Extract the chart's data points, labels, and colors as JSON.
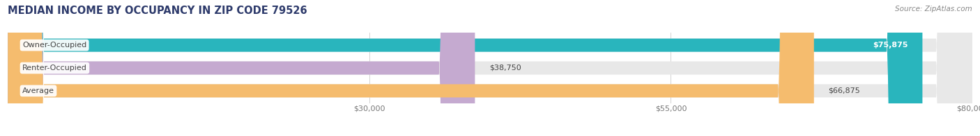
{
  "title": "MEDIAN INCOME BY OCCUPANCY IN ZIP CODE 79526",
  "source": "Source: ZipAtlas.com",
  "categories": [
    "Owner-Occupied",
    "Renter-Occupied",
    "Average"
  ],
  "values": [
    75875,
    38750,
    66875
  ],
  "bar_colors": [
    "#29b5bd",
    "#c5aad0",
    "#f5bc6e"
  ],
  "value_labels": [
    "$75,875",
    "$38,750",
    "$66,875"
  ],
  "value_inside": [
    true,
    false,
    false
  ],
  "xmin": 0,
  "xmax": 80000,
  "xticks": [
    30000,
    55000,
    80000
  ],
  "xtick_labels": [
    "$30,000",
    "$55,000",
    "$80,000"
  ],
  "bar_bg_color": "#e8e8e8",
  "title_color": "#2d3a6b",
  "title_fontsize": 10.5,
  "source_fontsize": 7.5,
  "tick_fontsize": 8,
  "bar_label_fontsize": 8,
  "value_fontsize": 8
}
